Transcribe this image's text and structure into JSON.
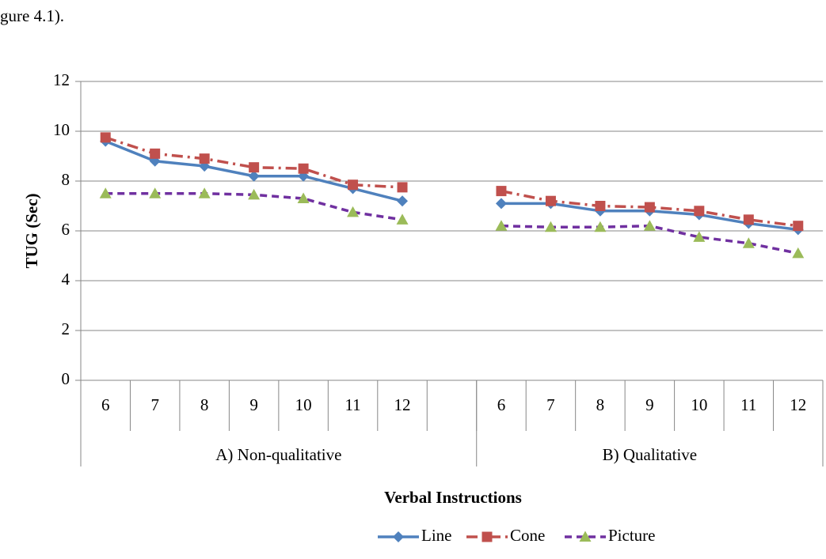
{
  "page_text": "gure 4.1).",
  "chart_data": {
    "type": "line",
    "y_axis_label": "TUG (Sec)",
    "x_axis_label": "Verbal Instructions",
    "categories": [
      "6",
      "7",
      "8",
      "9",
      "10",
      "11",
      "12",
      null,
      "6",
      "7",
      "8",
      "9",
      "10",
      "11",
      "12"
    ],
    "groups": [
      {
        "name": "A) Non-qualitative",
        "size": 8
      },
      {
        "name": "B) Qualitative",
        "size": 7
      }
    ],
    "ylim": [
      0,
      12
    ],
    "yticks": [
      0,
      2,
      4,
      6,
      8,
      10,
      12
    ],
    "grid": true,
    "legend": "bottom",
    "series": [
      {
        "name": "Line",
        "color": "#4f81bd",
        "marker": "diamond",
        "marker_color": "#4f81bd",
        "dash": "solid",
        "values": [
          9.6,
          8.8,
          8.6,
          8.2,
          8.2,
          7.7,
          7.2,
          null,
          7.1,
          7.1,
          6.8,
          6.8,
          6.65,
          6.3,
          6.05
        ]
      },
      {
        "name": "Cone",
        "color": "#c0504d",
        "marker": "square",
        "marker_color": "#c0504d",
        "dash": "dashdot",
        "values": [
          9.75,
          9.1,
          8.9,
          8.55,
          8.5,
          7.85,
          7.75,
          null,
          7.6,
          7.2,
          7.0,
          6.95,
          6.8,
          6.45,
          6.2
        ]
      },
      {
        "name": "Picture",
        "color": "#7030a0",
        "marker": "triangle",
        "marker_color": "#9bbb59",
        "dash": "dashed",
        "values": [
          7.5,
          7.5,
          7.5,
          7.45,
          7.3,
          6.75,
          6.45,
          null,
          6.2,
          6.15,
          6.15,
          6.2,
          5.75,
          5.5,
          5.1
        ]
      }
    ]
  }
}
